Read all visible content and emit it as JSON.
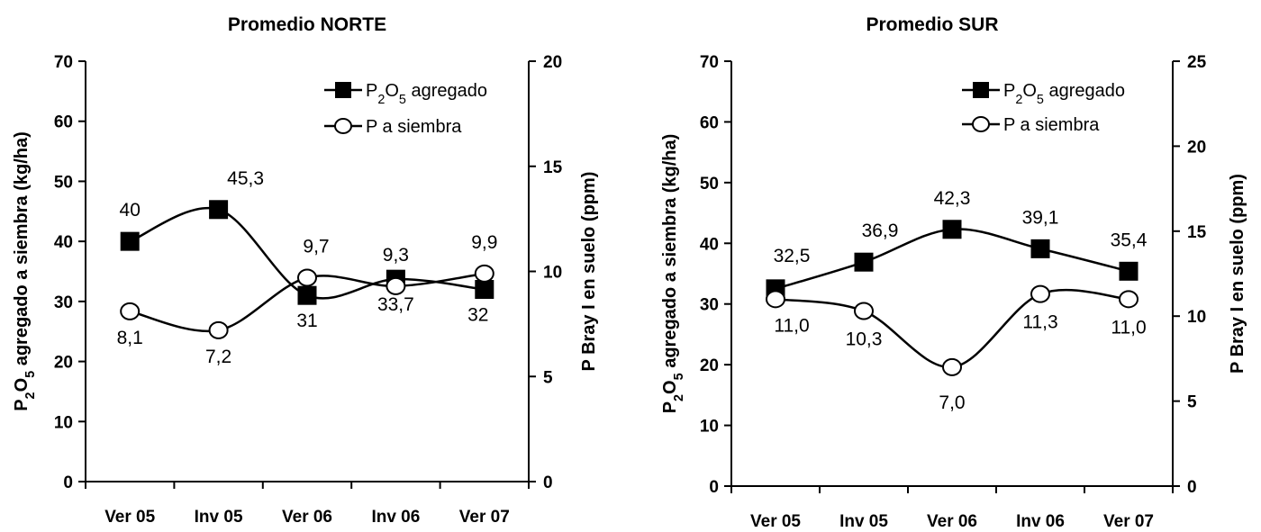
{
  "chart_data": [
    {
      "type": "line",
      "title": "Promedio NORTE",
      "categories": [
        "Ver 05",
        "Inv 05",
        "Ver 06",
        "Inv  06",
        "Ver 07"
      ],
      "ylabel": {
        "base": "P",
        "sub1": "2",
        "mid": "O",
        "sub2": "5",
        "rest": " agregado a siembra (kg/ha)"
      },
      "y2label": "P Bray I en suelo (ppm)",
      "ylim": [
        0,
        70
      ],
      "y2lim": [
        0,
        20
      ],
      "yticks": [
        "0",
        "10",
        "20",
        "30",
        "40",
        "50",
        "60",
        "70"
      ],
      "y2ticks": [
        "0",
        "5",
        "10",
        "15",
        "20"
      ],
      "legend_position": "top-right",
      "series": [
        {
          "name": {
            "base": "P",
            "sub1": "2",
            "mid": "O",
            "sub2": "5",
            "rest": " agregado"
          },
          "axis": "left",
          "marker": "square",
          "values": [
            40,
            45.3,
            31,
            33.7,
            32
          ],
          "labels": [
            "40",
            "45,3",
            "31",
            "33,7",
            "32"
          ]
        },
        {
          "name": {
            "base": "P a siembra"
          },
          "axis": "right",
          "marker": "circle",
          "values": [
            8.1,
            7.2,
            9.7,
            9.3,
            9.9
          ],
          "labels": [
            "8,1",
            "7,2",
            "9,7",
            "9,3",
            "9,9"
          ]
        }
      ]
    },
    {
      "type": "line",
      "title": "Promedio SUR",
      "categories": [
        "Ver 05",
        "Inv 05",
        "Ver 06",
        "Inv  06",
        "Ver 07"
      ],
      "ylabel": {
        "base": "P",
        "sub1": "2",
        "mid": "O",
        "sub2": "5",
        "rest": " agregado a siembra (kg/ha)"
      },
      "y2label": "P Bray I en suelo (ppm)",
      "ylim": [
        0,
        70
      ],
      "y2lim": [
        0,
        25
      ],
      "yticks": [
        "0",
        "10",
        "20",
        "30",
        "40",
        "50",
        "60",
        "70"
      ],
      "y2ticks": [
        "0",
        "5",
        "10",
        "15",
        "20",
        "25"
      ],
      "legend_position": "top-right",
      "series": [
        {
          "name": {
            "base": "P",
            "sub1": "2",
            "mid": "O",
            "sub2": "5",
            "rest": " agregado"
          },
          "axis": "left",
          "marker": "square",
          "values": [
            32.5,
            36.9,
            42.3,
            39.1,
            35.4
          ],
          "labels": [
            "32,5",
            "36,9",
            "42,3",
            "39,1",
            "35,4"
          ]
        },
        {
          "name": {
            "base": "P a siembra"
          },
          "axis": "right",
          "marker": "circle",
          "values": [
            11.0,
            10.3,
            7.0,
            11.3,
            11.0
          ],
          "labels": [
            "11,0",
            "10,3",
            "7,0",
            "11,3",
            "11,0"
          ]
        }
      ]
    }
  ]
}
